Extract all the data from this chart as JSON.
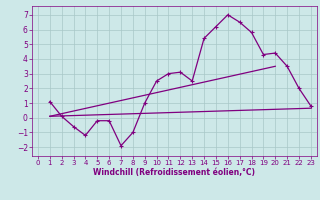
{
  "xlabel": "Windchill (Refroidissement éolien,°C)",
  "bg_color": "#cde8e8",
  "grid_color": "#a8c8c8",
  "line_color": "#800080",
  "spine_color": "#800080",
  "xlim": [
    -0.5,
    23.5
  ],
  "ylim": [
    -2.6,
    7.6
  ],
  "xticks": [
    0,
    1,
    2,
    3,
    4,
    5,
    6,
    7,
    8,
    9,
    10,
    11,
    12,
    13,
    14,
    15,
    16,
    17,
    18,
    19,
    20,
    21,
    22,
    23
  ],
  "yticks": [
    -2,
    -1,
    0,
    1,
    2,
    3,
    4,
    5,
    6,
    7
  ],
  "series1_x": [
    1,
    2,
    3,
    4,
    5,
    6,
    7,
    8,
    9,
    10,
    11,
    12,
    13,
    14,
    15,
    16,
    17,
    18,
    19,
    20,
    21,
    22,
    23
  ],
  "series1_y": [
    1.1,
    0.1,
    -0.6,
    -1.2,
    -0.2,
    -0.2,
    -1.9,
    -1.0,
    1.0,
    2.5,
    3.0,
    3.1,
    2.5,
    5.4,
    6.2,
    7.0,
    6.5,
    5.8,
    4.3,
    4.4,
    3.5,
    2.0,
    0.8
  ],
  "series2_x": [
    1,
    23
  ],
  "series2_y": [
    0.1,
    0.65
  ],
  "series3_x": [
    1,
    20
  ],
  "series3_y": [
    0.1,
    3.5
  ],
  "xlabel_fontsize": 5.5,
  "tick_fontsize": 5.0,
  "linewidth": 0.9,
  "markersize": 3.0
}
